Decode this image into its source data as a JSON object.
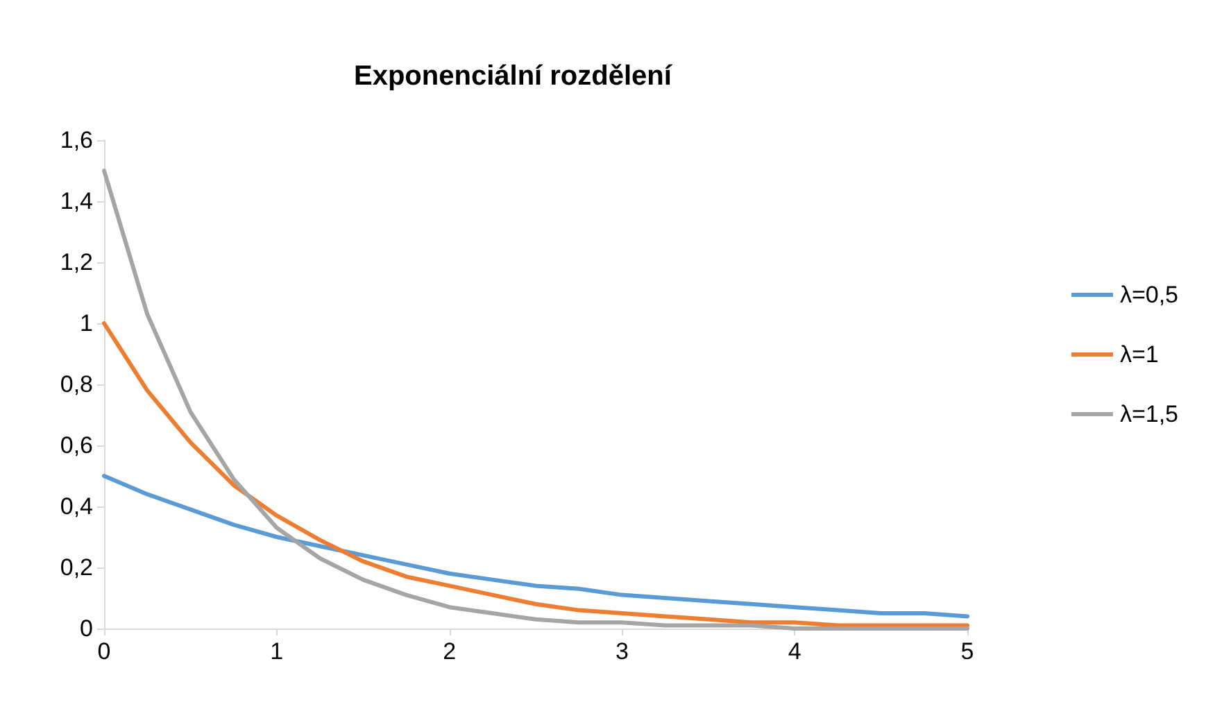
{
  "chart_data": {
    "type": "line",
    "title": "Exponenciální rozdělení",
    "x": [
      0,
      0.25,
      0.5,
      0.75,
      1,
      1.25,
      1.5,
      1.75,
      2,
      2.25,
      2.5,
      2.75,
      3,
      3.25,
      3.5,
      3.75,
      4,
      4.25,
      4.5,
      4.75,
      5
    ],
    "series": [
      {
        "name": "λ=0,5",
        "color": "#5b9bd5",
        "values": [
          0.5,
          0.44,
          0.39,
          0.34,
          0.3,
          0.27,
          0.24,
          0.21,
          0.18,
          0.16,
          0.14,
          0.13,
          0.11,
          0.1,
          0.09,
          0.08,
          0.07,
          0.06,
          0.05,
          0.05,
          0.04
        ]
      },
      {
        "name": "λ=1",
        "color": "#ed7d31",
        "values": [
          1,
          0.78,
          0.61,
          0.47,
          0.37,
          0.29,
          0.22,
          0.17,
          0.14,
          0.11,
          0.08,
          0.06,
          0.05,
          0.04,
          0.03,
          0.02,
          0.02,
          0.01,
          0.01,
          0.01,
          0.01
        ]
      },
      {
        "name": "λ=1,5",
        "color": "#a5a5a5",
        "values": [
          1.5,
          1.03,
          0.71,
          0.49,
          0.33,
          0.23,
          0.16,
          0.11,
          0.07,
          0.05,
          0.03,
          0.02,
          0.02,
          0.01,
          0.01,
          0.01,
          0,
          0,
          0,
          0,
          0
        ]
      }
    ],
    "xlim": [
      0,
      5
    ],
    "xticks": [
      0,
      1,
      2,
      3,
      4,
      5
    ],
    "ylim": [
      0,
      1.6
    ],
    "yticks": [
      0,
      {
        "value": 0.2,
        "label": "0,2"
      },
      {
        "value": 0.4,
        "label": "0,4"
      },
      {
        "value": 0.6,
        "label": "0,6"
      },
      {
        "value": 0.8,
        "label": "0,8"
      },
      1,
      {
        "value": 1.2,
        "label": "1,2"
      },
      {
        "value": 1.4,
        "label": "1,4"
      },
      {
        "value": 1.6,
        "label": "1,6"
      }
    ],
    "grid": false,
    "legend": "right",
    "marker": "none",
    "line_style": "solid"
  }
}
